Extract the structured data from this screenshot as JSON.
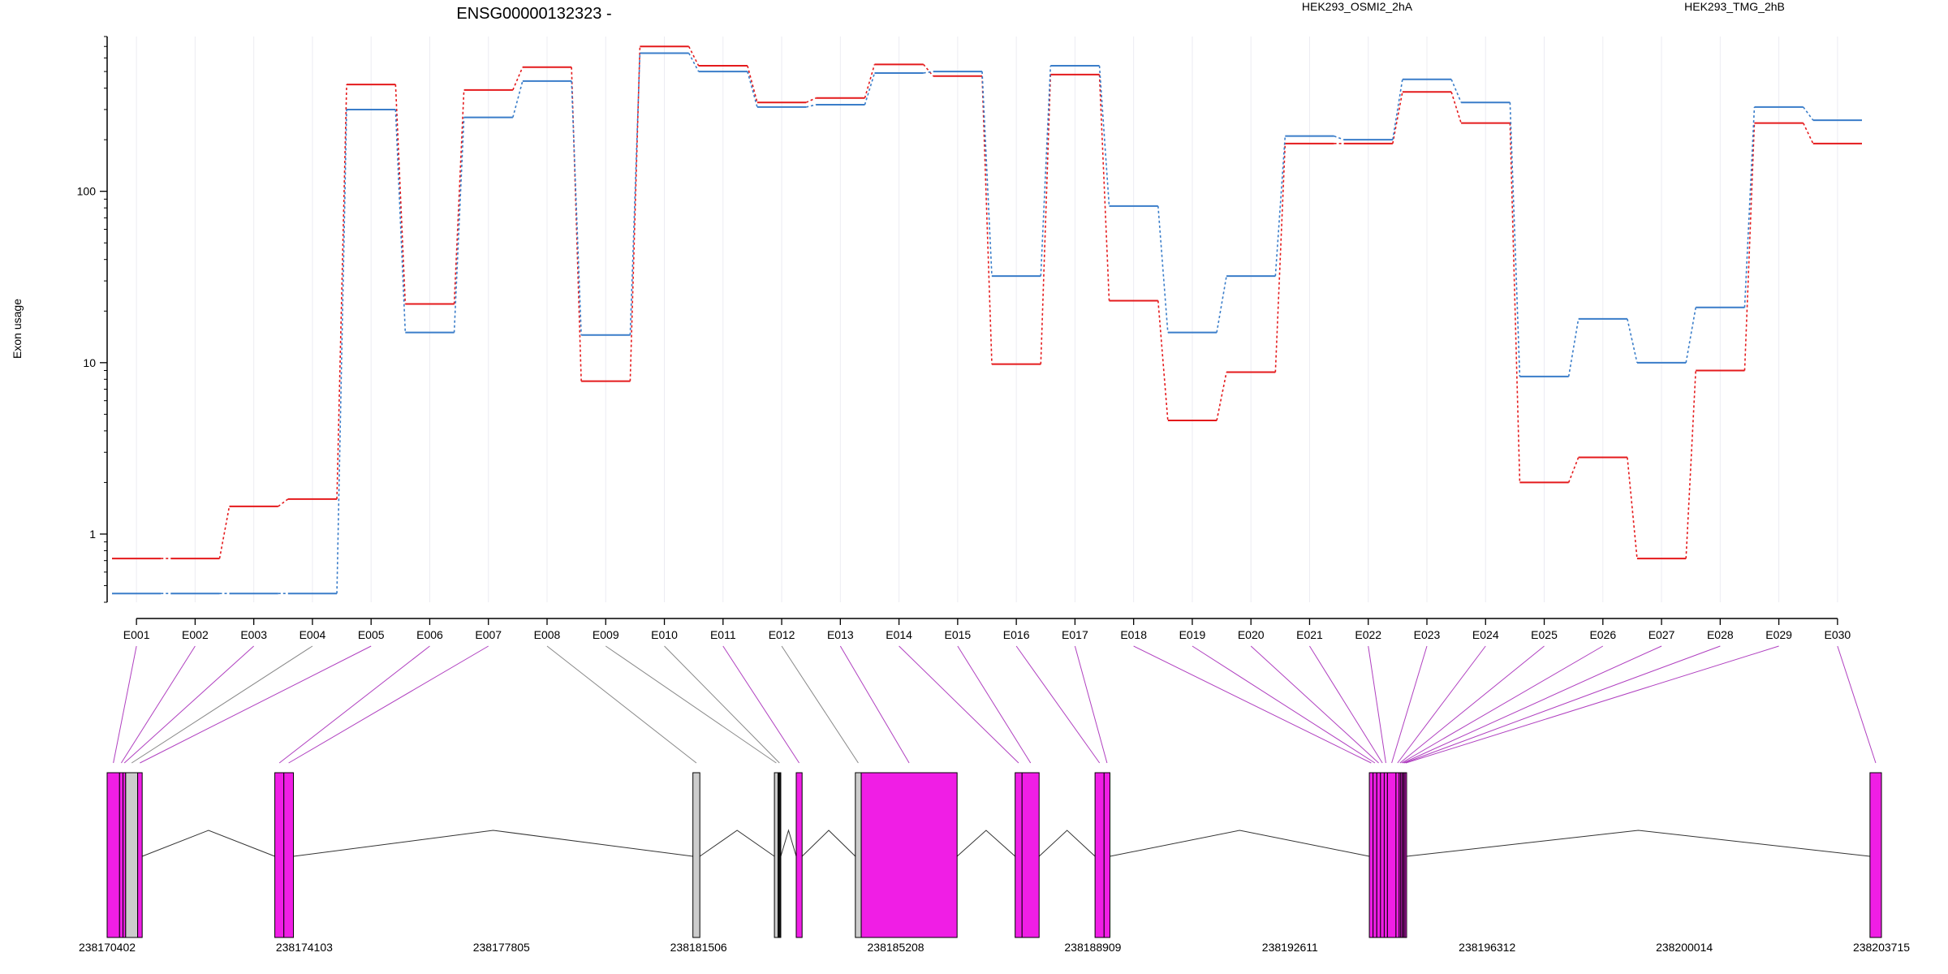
{
  "chart_data": {
    "type": "line",
    "title": "ENSG00000132323 -",
    "ylabel": "Exon usage",
    "yscale": "log",
    "ylim": [
      0.4,
      800
    ],
    "yticks": [
      {
        "value": 1,
        "label": "1"
      },
      {
        "value": 10,
        "label": "10"
      },
      {
        "value": 100,
        "label": "100"
      }
    ],
    "categories": [
      "E001",
      "E002",
      "E003",
      "E004",
      "E005",
      "E006",
      "E007",
      "E008",
      "E009",
      "E010",
      "E011",
      "E012",
      "E013",
      "E014",
      "E015",
      "E016",
      "E017",
      "E018",
      "E019",
      "E020",
      "E021",
      "E022",
      "E023",
      "E024",
      "E025",
      "E026",
      "E027",
      "E028",
      "E029",
      "E030"
    ],
    "series": [
      {
        "name": "HEK293_OSMI2_2hA",
        "color": "#e41a1c",
        "values": [
          0.72,
          0.72,
          1.45,
          1.6,
          420,
          22,
          390,
          530,
          7.8,
          700,
          540,
          330,
          350,
          550,
          470,
          9.8,
          480,
          23,
          4.6,
          8.8,
          190,
          190,
          380,
          250,
          2.0,
          2.8,
          0.72,
          9.0,
          250,
          190
        ]
      },
      {
        "name": "HEK293_TMG_2hB",
        "color": "#3a7dc9",
        "values": [
          0.45,
          0.45,
          0.45,
          0.45,
          300,
          15,
          270,
          440,
          14.5,
          640,
          500,
          310,
          320,
          490,
          500,
          32,
          540,
          82,
          15,
          32,
          210,
          200,
          450,
          330,
          8.3,
          18,
          10,
          21,
          310,
          260
        ]
      }
    ],
    "gene_model": {
      "coord_labels": [
        "238170402",
        "238174103",
        "238177805",
        "238181506",
        "238185208",
        "238188909",
        "238192611",
        "238196312",
        "238200014",
        "238203715"
      ],
      "exons": [
        {
          "id": "E001",
          "start": 238170402,
          "end": 238170635,
          "color": "#f01ee5"
        },
        {
          "id": "E002",
          "start": 238170635,
          "end": 238170700,
          "color": "#f01ee5"
        },
        {
          "id": "E003",
          "start": 238170700,
          "end": 238170750,
          "color": "#f01ee5"
        },
        {
          "id": "E004",
          "start": 238170750,
          "end": 238170975,
          "color": "#cccccc"
        },
        {
          "id": "E005",
          "start": 238170975,
          "end": 238171060,
          "color": "#f01ee5"
        },
        {
          "id": "E006",
          "start": 238173550,
          "end": 238173720,
          "color": "#f01ee5"
        },
        {
          "id": "E007",
          "start": 238173720,
          "end": 238173900,
          "color": "#f01ee5"
        },
        {
          "id": "E008",
          "start": 238181400,
          "end": 238181530,
          "color": "#cccccc"
        },
        {
          "id": "E009",
          "start": 238182930,
          "end": 238183000,
          "color": "#cccccc"
        },
        {
          "id": "E010",
          "start": 238183000,
          "end": 238183050,
          "color": "#111111"
        },
        {
          "id": "E011",
          "start": 238183340,
          "end": 238183450,
          "color": "#f01ee5"
        },
        {
          "id": "E012",
          "start": 238184450,
          "end": 238184560,
          "color": "#cccccc"
        },
        {
          "id": "E013",
          "start": 238184560,
          "end": 238186360,
          "color": "#f01ee5"
        },
        {
          "id": "E014",
          "start": 238187450,
          "end": 238187580,
          "color": "#f01ee5"
        },
        {
          "id": "E015",
          "start": 238187580,
          "end": 238187900,
          "color": "#f01ee5"
        },
        {
          "id": "E016",
          "start": 238188950,
          "end": 238189120,
          "color": "#f01ee5"
        },
        {
          "id": "E017",
          "start": 238189120,
          "end": 238189230,
          "color": "#f01ee5"
        },
        {
          "id": "E018",
          "start": 238194100,
          "end": 238194170,
          "color": "#f01ee5"
        },
        {
          "id": "E019",
          "start": 238194170,
          "end": 238194240,
          "color": "#f01ee5"
        },
        {
          "id": "E020",
          "start": 238194240,
          "end": 238194310,
          "color": "#f01ee5"
        },
        {
          "id": "E021",
          "start": 238194310,
          "end": 238194380,
          "color": "#f01ee5"
        },
        {
          "id": "E022",
          "start": 238194380,
          "end": 238194440,
          "color": "#f01ee5"
        },
        {
          "id": "E023",
          "start": 238194440,
          "end": 238194600,
          "color": "#f01ee5"
        },
        {
          "id": "E024",
          "start": 238194600,
          "end": 238194660,
          "color": "#f01ee5"
        },
        {
          "id": "E025",
          "start": 238194660,
          "end": 238194690,
          "color": "#f01ee5"
        },
        {
          "id": "E026",
          "start": 238194690,
          "end": 238194720,
          "color": "#f01ee5"
        },
        {
          "id": "E027",
          "start": 238194720,
          "end": 238194745,
          "color": "#f01ee5"
        },
        {
          "id": "E028",
          "start": 238194745,
          "end": 238194770,
          "color": "#f01ee5"
        },
        {
          "id": "E029",
          "start": 238194770,
          "end": 238194800,
          "color": "#f01ee5"
        },
        {
          "id": "E030",
          "start": 238203500,
          "end": 238203715,
          "color": "#f01ee5"
        }
      ],
      "introns": [
        {
          "start": 238171060,
          "end": 238173550
        },
        {
          "start": 238173900,
          "end": 238181400
        },
        {
          "start": 238181530,
          "end": 238182930
        },
        {
          "start": 238183050,
          "end": 238183340
        },
        {
          "start": 238183450,
          "end": 238184450
        },
        {
          "start": 238186360,
          "end": 238187450
        },
        {
          "start": 238187900,
          "end": 238188950
        },
        {
          "start": 238189230,
          "end": 238194100
        },
        {
          "start": 238194800,
          "end": 238203500
        }
      ]
    }
  }
}
